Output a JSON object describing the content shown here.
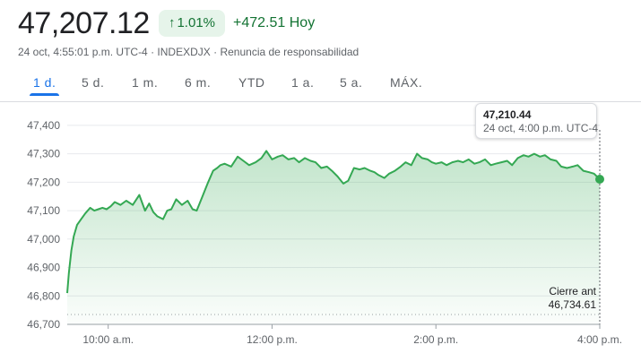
{
  "header": {
    "price": "47,207.12",
    "change_percent": "1.01%",
    "change_arrow": "↑",
    "change_points": "+472.51",
    "change_period": "Hoy",
    "timestamp": "24 oct, 4:55:01 p.m. UTC-4",
    "index": "INDEXDJX",
    "disclaimer": "Renuncia de responsabilidad",
    "accent_color": "#137333",
    "chip_bg": "#e6f4ea"
  },
  "tabs": [
    {
      "label": "1 d.",
      "active": true
    },
    {
      "label": "5 d.",
      "active": false
    },
    {
      "label": "1 m.",
      "active": false
    },
    {
      "label": "6 m.",
      "active": false
    },
    {
      "label": "YTD",
      "active": false
    },
    {
      "label": "1 a.",
      "active": false
    },
    {
      "label": "5 a.",
      "active": false
    },
    {
      "label": "MÁX.",
      "active": false
    }
  ],
  "tooltip": {
    "value": "47,210.44",
    "time": "24 oct, 4:00 p.m. UTC-4"
  },
  "prev_close": {
    "label": "Cierre ant",
    "value": "46,734.61"
  },
  "chart_data": {
    "type": "area",
    "title": "",
    "xlabel": "",
    "ylabel": "",
    "ylim": [
      46700,
      47450
    ],
    "x_unit": "hours (ET)",
    "xlim": [
      9.5,
      16.0
    ],
    "y_ticks": [
      46700,
      46800,
      46900,
      47000,
      47100,
      47200,
      47300,
      47400
    ],
    "y_tick_labels": [
      "46,700",
      "46,800",
      "46,900",
      "47,000",
      "47,100",
      "47,200",
      "47,300",
      "47,400"
    ],
    "x_ticks": [
      10,
      12,
      14,
      16
    ],
    "x_tick_labels": [
      "10:00 a.m.",
      "12:00 p.m.",
      "2:00 p.m.",
      "4:00 p.m."
    ],
    "previous_close": 46734.61,
    "line_color": "#34a853",
    "grid": true,
    "series": [
      {
        "name": "",
        "x": [
          9.5,
          9.52,
          9.55,
          9.58,
          9.62,
          9.67,
          9.72,
          9.78,
          9.83,
          9.88,
          9.93,
          9.98,
          10.03,
          10.08,
          10.15,
          10.22,
          10.3,
          10.38,
          10.45,
          10.5,
          10.55,
          10.6,
          10.67,
          10.72,
          10.77,
          10.83,
          10.9,
          10.97,
          11.03,
          11.08,
          11.15,
          11.22,
          11.28,
          11.33,
          11.37,
          11.42,
          11.5,
          11.58,
          11.65,
          11.72,
          11.8,
          11.87,
          11.93,
          12.0,
          12.07,
          12.13,
          12.2,
          12.27,
          12.33,
          12.4,
          12.47,
          12.53,
          12.6,
          12.67,
          12.73,
          12.8,
          12.87,
          12.93,
          13.0,
          13.07,
          13.13,
          13.2,
          13.25,
          13.3,
          13.37,
          13.43,
          13.5,
          13.57,
          13.63,
          13.7,
          13.77,
          13.83,
          13.9,
          13.95,
          14.0,
          14.07,
          14.13,
          14.2,
          14.27,
          14.33,
          14.4,
          14.47,
          14.53,
          14.6,
          14.67,
          14.73,
          14.8,
          14.87,
          14.93,
          15.0,
          15.07,
          15.13,
          15.2,
          15.27,
          15.33,
          15.4,
          15.47,
          15.53,
          15.6,
          15.67,
          15.73,
          15.8,
          15.87,
          15.93,
          16.0
        ],
        "y": [
          46810,
          46880,
          46960,
          47010,
          47050,
          47070,
          47090,
          47110,
          47100,
          47105,
          47110,
          47105,
          47115,
          47130,
          47120,
          47135,
          47120,
          47155,
          47100,
          47125,
          47095,
          47080,
          47070,
          47100,
          47105,
          47140,
          47120,
          47135,
          47105,
          47100,
          47150,
          47200,
          47240,
          47250,
          47260,
          47265,
          47255,
          47290,
          47275,
          47260,
          47270,
          47285,
          47310,
          47280,
          47290,
          47295,
          47280,
          47285,
          47270,
          47285,
          47275,
          47270,
          47250,
          47255,
          47240,
          47220,
          47195,
          47205,
          47250,
          47245,
          47250,
          47240,
          47235,
          47225,
          47215,
          47230,
          47240,
          47255,
          47270,
          47260,
          47300,
          47285,
          47280,
          47270,
          47265,
          47270,
          47260,
          47270,
          47275,
          47270,
          47280,
          47265,
          47270,
          47280,
          47260,
          47265,
          47270,
          47275,
          47260,
          47285,
          47295,
          47290,
          47300,
          47290,
          47295,
          47280,
          47275,
          47255,
          47250,
          47255,
          47260,
          47240,
          47235,
          47230,
          47210.44
        ]
      }
    ]
  }
}
